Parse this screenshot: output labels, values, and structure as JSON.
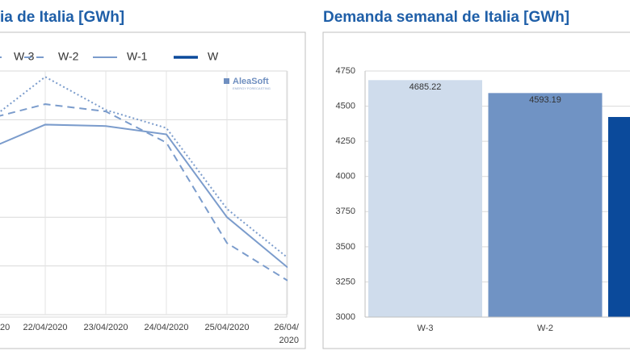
{
  "chart_data": [
    {
      "type": "line",
      "title": "ia de Italia [GWh]",
      "categories": [
        "20",
        "22/04/2020",
        "23/04/2020",
        "24/04/2020",
        "25/04/2020",
        "26/04/2020"
      ],
      "ylim": [
        0,
        5
      ],
      "grid_levels": [
        0,
        1,
        2,
        3,
        4,
        5
      ],
      "grid": true,
      "series": [
        {
          "name": "W-3",
          "color": "#7b9ccc",
          "dash": "dotted",
          "width": 2,
          "values": [
            3.92,
            4.88,
            4.2,
            3.83,
            2.17,
            1.17
          ]
        },
        {
          "name": "W-2",
          "color": "#7b9ccc",
          "dash": "dashed",
          "width": 2,
          "values": [
            4.0,
            4.32,
            4.17,
            3.53,
            1.47,
            0.7
          ]
        },
        {
          "name": "W-1",
          "color": "#7b9ccc",
          "dash": "solid",
          "width": 2,
          "values": [
            3.37,
            3.9,
            3.87,
            3.7,
            2.0,
            0.97
          ]
        },
        {
          "name": "W",
          "color": "#0b4a9b",
          "dash": "solid",
          "width": 3.5,
          "values": [
            null,
            null,
            null,
            null,
            null,
            null
          ]
        }
      ],
      "logo": {
        "name": "AleaSoft",
        "tagline": "ENERGY FORECASTING"
      }
    },
    {
      "type": "bar",
      "title": "Demanda semanal de Italia [GWh]",
      "categories": [
        "W-3",
        "W-2",
        null
      ],
      "values": [
        4685.22,
        4593.19,
        4423
      ],
      "colors": [
        "#cfdcec",
        "#7093c4",
        "#0b4a9b"
      ],
      "value_labels": [
        "4685.22",
        "4593.19",
        null
      ],
      "ylim": [
        3000,
        4750
      ],
      "yticks": [
        3000,
        3250,
        3500,
        3750,
        4000,
        4250,
        4500,
        4750
      ],
      "grid": true
    }
  ]
}
